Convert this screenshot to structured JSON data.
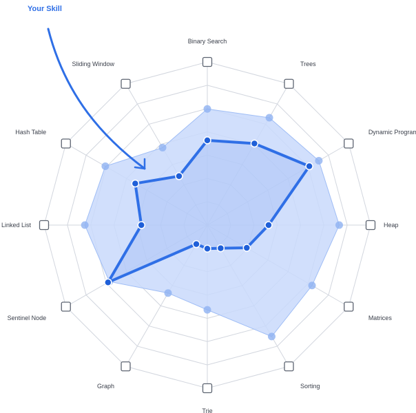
{
  "chart_data": {
    "type": "radar",
    "title": "",
    "annotation": "Your Skill",
    "categories": [
      "Binary Search",
      "Trees",
      "Dynamic Programming",
      "Heap",
      "Matrices",
      "Sorting",
      "Trie",
      "Graph",
      "Sentinel Node",
      "Linked List",
      "Hash Table",
      "Sliding Window"
    ],
    "rmax": 10,
    "rings": 7,
    "series": [
      {
        "name": "",
        "style": "area",
        "values": [
          7.4,
          7.9,
          8.2,
          8.4,
          7.7,
          8.2,
          5.4,
          5.0,
          7.2,
          7.8,
          7.5,
          5.7
        ]
      },
      {
        "name": "",
        "style": "line",
        "values": [
          5.4,
          6.0,
          7.5,
          3.9,
          2.9,
          1.7,
          1.5,
          1.4,
          7.3,
          4.2,
          5.3,
          3.6
        ]
      }
    ],
    "colors": {
      "area_fill": "#c9d9fb",
      "area_stroke": "#9fbdf5",
      "area_point": "#8fb1f1",
      "line": "#2f6fe6",
      "point": "#1f5fd8",
      "grid": "#d2d6de",
      "checkbox": "#5c6370"
    }
  }
}
